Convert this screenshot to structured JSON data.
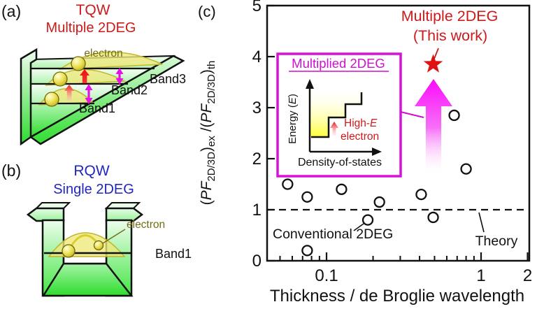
{
  "colors": {
    "accent_red": "#cc1a1a",
    "accent_blue": "#2127bd",
    "accent_magenta": "#d911d9",
    "accent_olive": "#6f6f12",
    "well_green": "#2edc2e",
    "star_red": "#dd1111",
    "marker_black": "#111111"
  },
  "panel_a": {
    "tag": "(a)",
    "title_line1": "TQW",
    "title_line2": "Multiple 2DEG",
    "electron_label": "electron",
    "band1_label": "Band1",
    "band2_label": "Band2",
    "band3_label": "Band3"
  },
  "panel_b": {
    "tag": "(b)",
    "title_line1": "RQW",
    "title_line2": "Single 2DEG",
    "electron_label": "electron",
    "band1_label": "Band1"
  },
  "panel_c": {
    "tag": "(c)",
    "highlight_line1": "Multiple 2DEG",
    "highlight_line2": "(This work)",
    "conventional_label": "Conventional 2DEG",
    "theory_label": "Theory",
    "inset": {
      "title": "Multiplied 2DEG",
      "ylabel_pre": "Energy (",
      "ylabel_var": "E",
      "ylabel_post": ")",
      "xlabel": "Density-of-states",
      "note_pre": "High-",
      "note_var": "E",
      "note_line2": "electron"
    }
  },
  "chart_data": {
    "type": "scatter",
    "xlabel": "Thickness / de Broglie wavelength",
    "ylabel_plain": "(PF2D/3D)ex /(PF2D/3D)th",
    "ylabel_parts": {
      "p1": "(",
      "p2": "PF",
      "p3": "2D/3D",
      "p4": ")",
      "p5": "ex",
      "p6": " /(",
      "p7": "PF",
      "p8": "2D/3D",
      "p9": ")",
      "p10": "th"
    },
    "x_scale": "log",
    "xlim": [
      0.04,
      2.05
    ],
    "ylim": [
      0,
      5
    ],
    "x_major_ticks": [
      {
        "v": 0.1,
        "label": "0.1"
      },
      {
        "v": 1,
        "label": "1"
      },
      {
        "v": 2,
        "label": "2"
      }
    ],
    "x_minor_ticks": [
      0.05,
      0.06,
      0.07,
      0.08,
      0.09,
      0.2,
      0.3,
      0.4,
      0.5,
      0.6,
      0.7,
      0.8,
      0.9
    ],
    "y_ticks": [
      0,
      1,
      2,
      3,
      4,
      5
    ],
    "grid": false,
    "reference_line": {
      "y": 1,
      "style": "dashed",
      "label": "Theory"
    },
    "series": [
      {
        "name": "Conventional 2DEG",
        "marker": "circle",
        "points": [
          [
            0.056,
            1.5
          ],
          [
            0.075,
            1.25
          ],
          [
            0.075,
            0.2
          ],
          [
            0.125,
            1.4
          ],
          [
            0.185,
            0.8
          ],
          [
            0.22,
            1.15
          ],
          [
            0.41,
            1.3
          ],
          [
            0.49,
            0.85
          ],
          [
            0.67,
            2.85
          ],
          [
            0.8,
            1.8
          ]
        ]
      },
      {
        "name": "Multiple 2DEG (This work)",
        "marker": "star",
        "points": [
          [
            0.49,
            3.85
          ]
        ]
      }
    ]
  }
}
